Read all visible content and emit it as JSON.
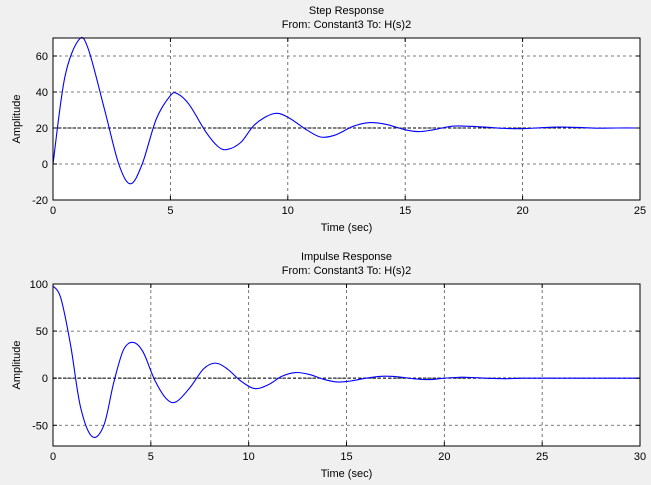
{
  "chart_data": [
    {
      "type": "line",
      "title": "Step Response",
      "subtitle": "From: Constant3  To: H(s)2",
      "xlabel": "Time (sec)",
      "ylabel": "Amplitude",
      "xlim": [
        0,
        25
      ],
      "ylim": [
        -20,
        70
      ],
      "xticks": [
        0,
        5,
        10,
        15,
        20,
        25
      ],
      "yticks": [
        -20,
        0,
        20,
        40,
        60
      ],
      "grid": true,
      "reference_y": 20,
      "series": [
        {
          "color": "#0000ff",
          "x": [
            0,
            0.5,
            1.1,
            1.5,
            2.2,
            2.8,
            3.3,
            3.8,
            4.4,
            5.0,
            5.3,
            5.8,
            6.5,
            7.0,
            7.4,
            8.0,
            8.6,
            9.4,
            10.0,
            10.8,
            11.4,
            12.0,
            12.8,
            13.5,
            14.2,
            15.0,
            15.6,
            16.2,
            17.0,
            17.6,
            18.4,
            19.2,
            20.0,
            20.8,
            21.6,
            22.4,
            23.2,
            24.0,
            25.0
          ],
          "values": [
            0,
            48,
            69,
            64,
            30,
            0,
            -11,
            0,
            25,
            38,
            39,
            33,
            18,
            10,
            8,
            12,
            22,
            28,
            26,
            19,
            15,
            16,
            21,
            23,
            22,
            19,
            18,
            19,
            21,
            21,
            20.5,
            19.8,
            19.6,
            20.2,
            20.5,
            20.3,
            19.9,
            20,
            20
          ]
        }
      ]
    },
    {
      "type": "line",
      "title": "Impulse Response",
      "subtitle": "From: Constant3  To: H(s)2",
      "xlabel": "Time (sec)",
      "ylabel": "Amplitude",
      "xlim": [
        0,
        30
      ],
      "ylim": [
        -72,
        100
      ],
      "xticks": [
        0,
        5,
        10,
        15,
        20,
        25,
        30
      ],
      "yticks": [
        -50,
        0,
        50,
        100
      ],
      "grid": true,
      "reference_y": 0,
      "series": [
        {
          "color": "#0000ff",
          "x": [
            0,
            0.4,
            0.9,
            1.4,
            2.0,
            2.6,
            3.1,
            3.6,
            4.1,
            4.6,
            5.2,
            5.8,
            6.3,
            7.0,
            7.7,
            8.3,
            8.9,
            9.6,
            10.3,
            11.0,
            11.7,
            12.4,
            13.1,
            13.8,
            14.5,
            15.2,
            16.0,
            16.8,
            17.6,
            18.4,
            19.2,
            20.0,
            20.8,
            21.6,
            22.4,
            23.2,
            24.0,
            25.0,
            27.0,
            30.0
          ],
          "values": [
            98,
            85,
            35,
            -30,
            -62,
            -50,
            -5,
            30,
            38,
            28,
            -2,
            -22,
            -25,
            -10,
            10,
            16,
            10,
            -3,
            -11,
            -7,
            2,
            6,
            4,
            -1,
            -4,
            -3,
            0,
            2,
            1.5,
            -0.5,
            -1.5,
            0,
            1,
            0.5,
            -0.3,
            -0.5,
            0,
            0,
            0,
            0
          ]
        }
      ]
    }
  ]
}
